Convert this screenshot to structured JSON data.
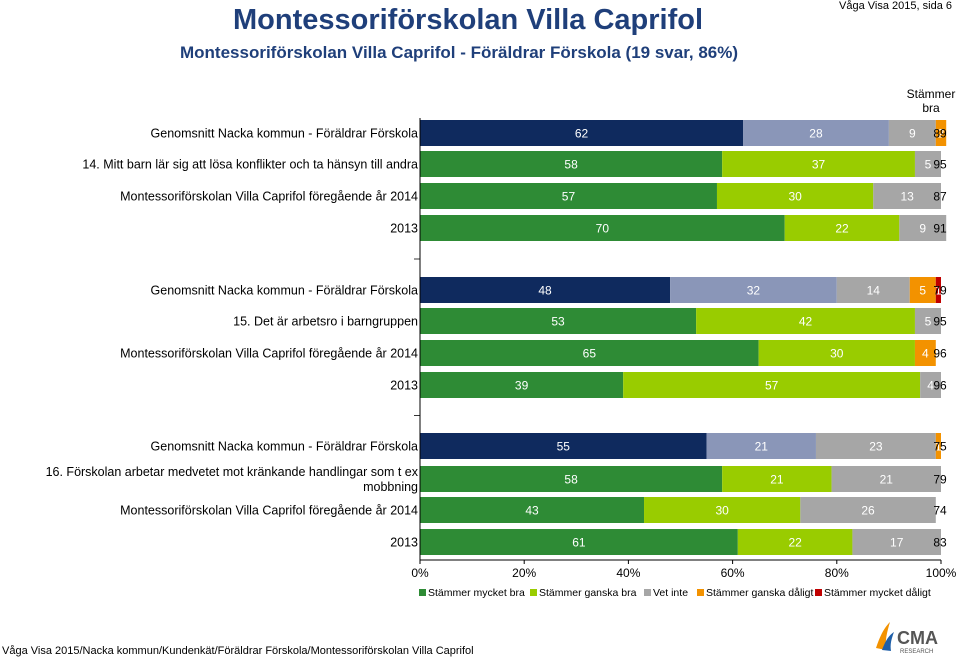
{
  "header": {
    "title": "Montessoriförskolan Villa Caprifol",
    "subtitle": "Montessoriförskolan Villa Caprifol - Föräldrar Förskola (19 svar, 86%)",
    "page_info": "Våga Visa 2015, sida 6",
    "column_header": "Stämmer bra"
  },
  "footer": {
    "text": "Våga Visa 2015/Nacka kommun/Kundenkät/Föräldrar Förskola/Montessoriförskolan Villa Caprifol"
  },
  "logo": {
    "text": "CMA",
    "subtext": "RESEARCH"
  },
  "colors": {
    "navy_series1": "#0f2a5e",
    "gray_series2": "#8a96b8",
    "gray_series3": "#a6a6a6",
    "green_series1": "#2e8b35",
    "lime_series2": "#99cc00",
    "orange": "#f39200",
    "red": "#c00000",
    "title_blue": "#1f3f7a"
  },
  "chart_data": {
    "type": "bar",
    "orientation": "horizontal-stacked-100",
    "xlim": [
      0,
      100
    ],
    "x_ticks": [
      "0%",
      "20%",
      "40%",
      "60%",
      "80%",
      "100%"
    ],
    "legend": [
      "Stämmer mycket bra",
      "Stämmer ganska bra",
      "Vet inte",
      "Stämmer ganska dåligt",
      "Stämmer mycket dåligt"
    ],
    "legend_position": "bottom",
    "groups": [
      {
        "question": "14. Mitt barn lär sig att lösa konflikter och ta hänsyn till andra",
        "rows": [
          {
            "label": "Genomsnitt Nacka kommun - Föräldrar Förskola",
            "scheme": "nacka",
            "values": [
              62,
              28,
              9,
              2,
              0
            ],
            "labels": [
              "62",
              "28",
              "9",
              "2",
              "0"
            ],
            "total": "89"
          },
          {
            "label": "",
            "scheme": "school",
            "values": [
              58,
              37,
              5,
              0,
              0
            ],
            "labels": [
              "58",
              "37",
              "5",
              "0",
              ""
            ],
            "total": "95"
          },
          {
            "label": "Montessoriförskolan Villa Caprifol föregående år 2014",
            "scheme": "school",
            "values": [
              57,
              30,
              13,
              0,
              0
            ],
            "labels": [
              "57",
              "30",
              "13",
              "0",
              ""
            ],
            "total": "87"
          },
          {
            "label": "2013",
            "scheme": "school",
            "values": [
              70,
              22,
              9,
              0,
              0
            ],
            "labels": [
              "70",
              "22",
              "9",
              "0",
              ""
            ],
            "total": "91"
          }
        ]
      },
      {
        "question": "15. Det är arbetsro i barngruppen",
        "rows": [
          {
            "label": "Genomsnitt Nacka kommun - Föräldrar Förskola",
            "scheme": "nacka",
            "values": [
              48,
              32,
              14,
              5,
              1
            ],
            "labels": [
              "48",
              "32",
              "14",
              "5",
              "1"
            ],
            "total": "79"
          },
          {
            "label": "",
            "scheme": "school",
            "values": [
              53,
              42,
              5,
              0,
              0
            ],
            "labels": [
              "53",
              "42",
              "5",
              "0",
              ""
            ],
            "total": "95"
          },
          {
            "label": "Montessoriförskolan Villa Caprifol föregående år 2014",
            "scheme": "school",
            "values": [
              65,
              30,
              0,
              4,
              0
            ],
            "labels": [
              "65",
              "30",
              "0",
              "4",
              "0"
            ],
            "total": "96"
          },
          {
            "label": "2013",
            "scheme": "school",
            "values": [
              39,
              57,
              4,
              0,
              0
            ],
            "labels": [
              "39",
              "57",
              "4",
              "0",
              ""
            ],
            "total": "96"
          }
        ]
      },
      {
        "question": "16. Förskolan arbetar medvetet mot kränkande handlingar som t ex mobbning",
        "rows": [
          {
            "label": "Genomsnitt Nacka kommun - Föräldrar Förskola",
            "scheme": "nacka",
            "values": [
              55,
              21,
              23,
              1,
              0
            ],
            "labels": [
              "55",
              "21",
              "23",
              "1",
              "0"
            ],
            "total": "75"
          },
          {
            "label": "",
            "scheme": "school",
            "values": [
              58,
              21,
              21,
              0,
              0
            ],
            "labels": [
              "58",
              "21",
              "21",
              "0",
              ""
            ],
            "total": "79"
          },
          {
            "label": "Montessoriförskolan Villa Caprifol föregående år 2014",
            "scheme": "school",
            "values": [
              43,
              30,
              26,
              0,
              0
            ],
            "labels": [
              "43",
              "30",
              "26",
              "0",
              ""
            ],
            "total": "74"
          },
          {
            "label": "2013",
            "scheme": "school",
            "values": [
              61,
              22,
              17,
              0,
              0
            ],
            "labels": [
              "61",
              "22",
              "17",
              "0",
              ""
            ],
            "total": "83"
          }
        ]
      }
    ]
  }
}
